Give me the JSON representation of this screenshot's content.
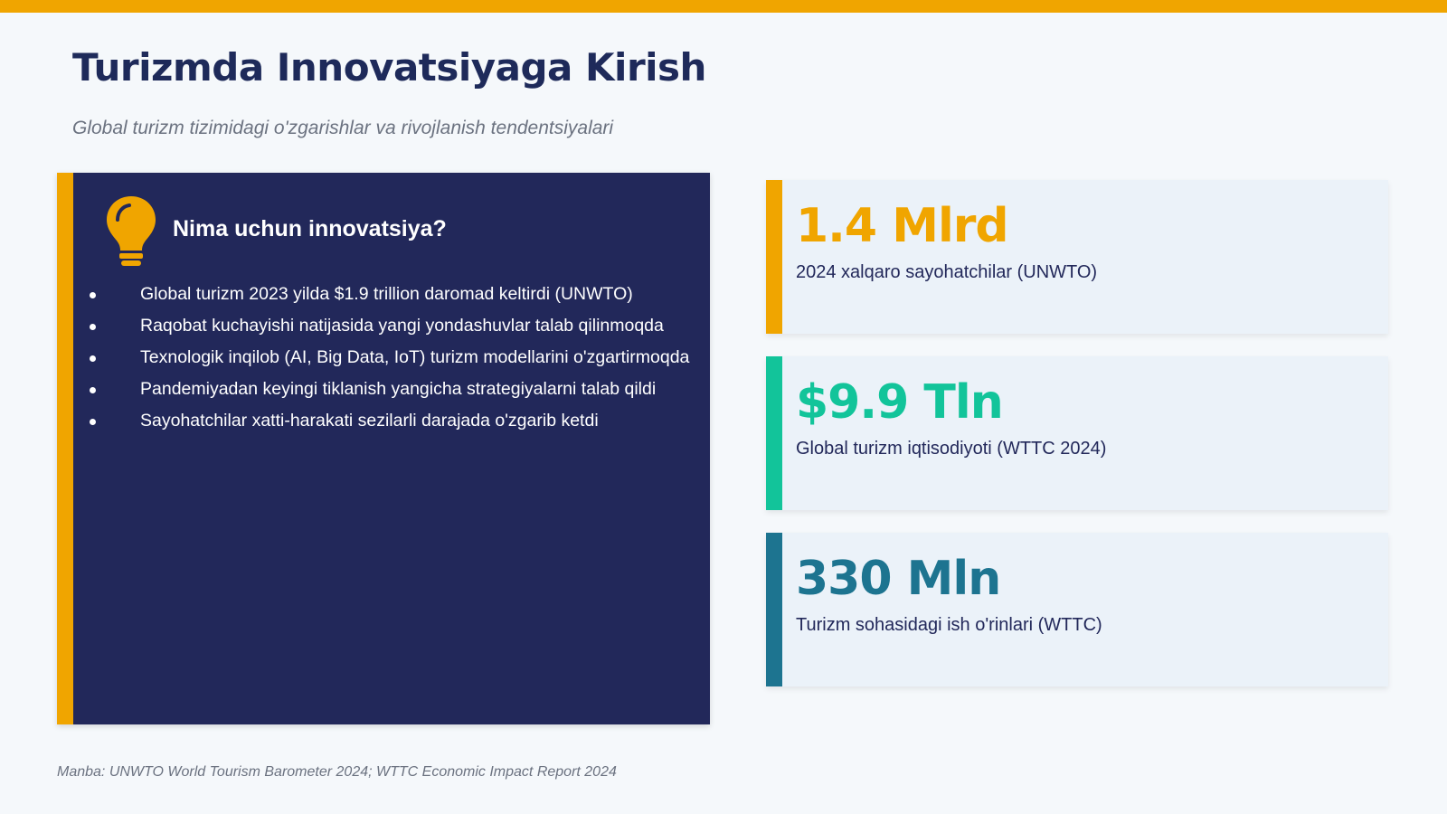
{
  "colors": {
    "accent_yellow": "#f0a500",
    "accent_green": "#12c49a",
    "accent_teal": "#1d7490",
    "navy": "#22285a",
    "title": "#1e2a5a",
    "card_bg": "#ebf2f9"
  },
  "header": {
    "title": "Turizmda Innovatsiyaga Kirish",
    "subtitle": "Global turizm tizimidagi o'zgarishlar va rivojlanish tendentsiyalari"
  },
  "panel": {
    "icon": "lightbulb-icon",
    "heading": "Nima uchun innovatsiya?",
    "bullets": [
      "Global turizm 2023 yilda $1.9 trillion daromad keltirdi (UNWTO)",
      "Raqobat kuchayishi natijasida yangi yondashuvlar talab qilinmoqda",
      "Texnologik inqilob (AI, Big Data, IoT) turizm modellarini o'zgartirmoqda",
      "Pandemiyadan keyingi tiklanish yangicha strategiyalarni talab qildi",
      "Sayohatchilar xatti-harakati sezilarli darajada o'zgarib ketdi"
    ]
  },
  "stats": [
    {
      "value": "1.4 Mlrd",
      "label": "2024 xalqaro sayohatchilar (UNWTO)"
    },
    {
      "value": "$9.9 Tln",
      "label": "Global turizm iqtisodiyoti (WTTC 2024)"
    },
    {
      "value": "330 Mln",
      "label": "Turizm sohasidagi ish o'rinlari (WTTC)"
    }
  ],
  "footer": {
    "source": "Manba: UNWTO World Tourism Barometer 2024; WTTC Economic Impact Report 2024"
  }
}
